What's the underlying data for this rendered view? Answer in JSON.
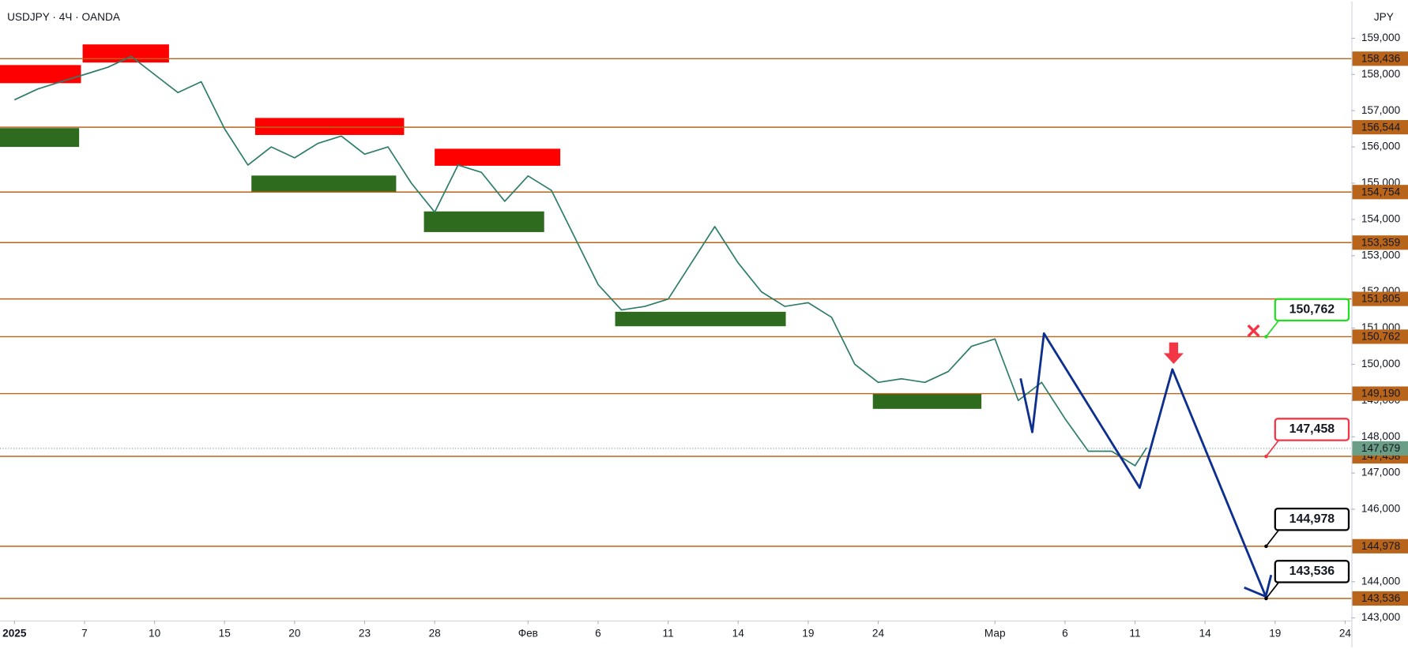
{
  "chart_data": {
    "type": "line",
    "title": "USDJPY · 4Ч · OANDA",
    "currency": "JPY",
    "color": "#2e7d6b",
    "x": [
      0,
      1,
      2,
      3,
      4,
      5,
      6,
      7,
      8,
      9,
      10,
      11,
      12,
      13,
      14,
      15,
      16,
      17,
      18,
      19,
      20,
      21,
      22,
      23,
      24,
      25,
      26,
      27,
      28,
      29,
      30,
      31,
      32,
      33,
      34,
      35,
      36,
      37,
      38,
      39,
      40,
      41,
      42,
      43,
      44,
      45,
      46,
      47,
      48,
      48.5
    ],
    "values": [
      157.3,
      157.6,
      157.8,
      158.0,
      158.2,
      158.5,
      158.0,
      157.5,
      157.8,
      156.5,
      155.5,
      156.0,
      155.7,
      156.1,
      156.3,
      155.8,
      156.0,
      155.0,
      154.2,
      155.5,
      155.3,
      154.5,
      155.2,
      154.8,
      153.5,
      152.2,
      151.5,
      151.6,
      151.8,
      152.8,
      153.8,
      152.8,
      152.0,
      151.6,
      151.7,
      151.3,
      150.0,
      149.5,
      149.6,
      149.5,
      149.8,
      150.5,
      150.7,
      149.0,
      149.5,
      148.5,
      147.6,
      147.6,
      147.2,
      147.7
    ],
    "forecast": {
      "color": "#0d2f8f",
      "x": [
        43.1,
        43.6,
        44.1,
        48.2,
        49.6,
        53.6
      ],
      "values": [
        149.61,
        148.13,
        150.85,
        146.59,
        149.86,
        143.59
      ]
    },
    "zones": [
      {
        "color": "#ff0000",
        "x": [
          -0.62,
          2.85
        ],
        "y": [
          157.76,
          158.26
        ]
      },
      {
        "color": "#ff0000",
        "x": [
          2.92,
          6.62
        ],
        "y": [
          158.33,
          158.83
        ]
      },
      {
        "color": "#ff0000",
        "x": [
          10.31,
          16.69
        ],
        "y": [
          156.33,
          156.8
        ]
      },
      {
        "color": "#ff0000",
        "x": [
          18.0,
          23.38
        ],
        "y": [
          155.48,
          155.95
        ]
      },
      {
        "color": "#2f6b1f",
        "x": [
          -0.62,
          2.77
        ],
        "y": [
          156.0,
          156.52
        ]
      },
      {
        "color": "#2f6b1f",
        "x": [
          10.15,
          16.35
        ],
        "y": [
          154.74,
          155.21
        ]
      },
      {
        "color": "#2f6b1f",
        "x": [
          17.54,
          22.69
        ],
        "y": [
          153.65,
          154.22
        ]
      },
      {
        "color": "#2f6b1f",
        "x": [
          25.73,
          33.04
        ],
        "y": [
          151.05,
          151.45
        ]
      },
      {
        "color": "#2f6b1f",
        "x": [
          36.77,
          41.42
        ],
        "y": [
          148.77,
          149.19
        ]
      }
    ],
    "level_color": "#b8651b",
    "levels": [
      {
        "value": 158.436,
        "label": "158,436"
      },
      {
        "value": 156.544,
        "label": "156,544"
      },
      {
        "value": 154.754,
        "label": "154,754"
      },
      {
        "value": 153.359,
        "label": "153,359"
      },
      {
        "value": 151.805,
        "label": "151,805"
      },
      {
        "value": 150.762,
        "label": "150,762"
      },
      {
        "value": 149.19,
        "label": "149,190"
      },
      {
        "value": 147.458,
        "label": "147,458"
      },
      {
        "value": 144.978,
        "label": "144,978"
      },
      {
        "value": 143.536,
        "label": "143,536"
      }
    ],
    "current_price": {
      "value": 147.679,
      "label": "147,679",
      "color": "#6b9e87"
    },
    "callouts": [
      {
        "value": 150.762,
        "label": "150,762",
        "color": "#22dd22"
      },
      {
        "value": 147.458,
        "label": "147,458",
        "color": "#f23645"
      },
      {
        "value": 144.978,
        "label": "144,978",
        "color": "#000000"
      },
      {
        "value": 143.536,
        "label": "143,536",
        "color": "#000000"
      }
    ],
    "xlim": [
      -0.62,
      57.27
    ],
    "ylim": [
      142.925,
      160.015
    ],
    "yticks": [
      {
        "value": 143,
        "label": "143,000"
      },
      {
        "value": 144,
        "label": "144,000"
      },
      {
        "value": 145,
        "label": "145,000"
      },
      {
        "value": 146,
        "label": "146,000"
      },
      {
        "value": 147,
        "label": "147,000"
      },
      {
        "value": 148,
        "label": "148,000"
      },
      {
        "value": 149,
        "label": "149,000"
      },
      {
        "value": 150,
        "label": "150,000"
      },
      {
        "value": 151,
        "label": "151,000"
      },
      {
        "value": 152,
        "label": "152,000"
      },
      {
        "value": 153,
        "label": "153,000"
      },
      {
        "value": 154,
        "label": "154,000"
      },
      {
        "value": 155,
        "label": "155,000"
      },
      {
        "value": 156,
        "label": "156,000"
      },
      {
        "value": 157,
        "label": "157,000"
      },
      {
        "value": 158,
        "label": "158,000"
      },
      {
        "value": 159,
        "label": "159,000"
      }
    ],
    "xticks": [
      {
        "value": 0,
        "label": "2025"
      },
      {
        "value": 3,
        "label": "7"
      },
      {
        "value": 6,
        "label": "10"
      },
      {
        "value": 9,
        "label": "15"
      },
      {
        "value": 12,
        "label": "20"
      },
      {
        "value": 15,
        "label": "23"
      },
      {
        "value": 18,
        "label": "28"
      },
      {
        "value": 22,
        "label": "Фев"
      },
      {
        "value": 25,
        "label": "6"
      },
      {
        "value": 28,
        "label": "11"
      },
      {
        "value": 31,
        "label": "14"
      },
      {
        "value": 34,
        "label": "19"
      },
      {
        "value": 37,
        "label": "24"
      },
      {
        "value": 42,
        "label": "Мар"
      },
      {
        "value": 45,
        "label": "6"
      },
      {
        "value": 48,
        "label": "11"
      },
      {
        "value": 51,
        "label": "14"
      },
      {
        "value": 54,
        "label": "19"
      },
      {
        "value": 57,
        "label": "24"
      }
    ],
    "grid": false
  }
}
